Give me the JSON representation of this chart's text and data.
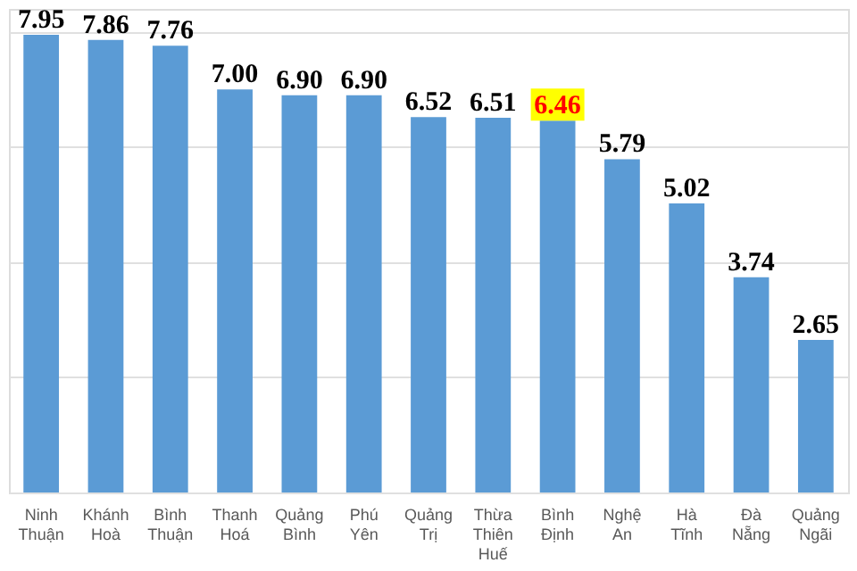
{
  "chart_data": {
    "type": "bar",
    "categories": [
      "Ninh Thuận",
      "Khánh Hoà",
      "Bình Thuận",
      "Thanh Hoá",
      "Quảng Bình",
      "Phú Yên",
      "Quảng Trị",
      "Thừa Thiên Huế",
      "Bình Định",
      "Nghệ An",
      "Hà Tĩnh",
      "Đà Nẵng",
      "Quảng Ngãi"
    ],
    "values": [
      7.95,
      7.86,
      7.76,
      7.0,
      6.9,
      6.9,
      6.52,
      6.51,
      6.46,
      5.79,
      5.02,
      3.74,
      2.65
    ],
    "color": "#5b9bd5",
    "value_labels": [
      "7.95",
      "7.86",
      "7.76",
      "7.00",
      "6.90",
      "6.90",
      "6.52",
      "6.51",
      null,
      "5.79",
      "5.02",
      "3.74",
      "2.65"
    ],
    "annotations": [
      {
        "text": "6.46",
        "x": "Bình Định",
        "y": 6.46
      }
    ],
    "ylim": [
      0,
      8.4
    ],
    "yticks": [
      {
        "value": 0,
        "label": null
      },
      {
        "value": 2,
        "label": null
      },
      {
        "value": 4,
        "label": null
      },
      {
        "value": 6,
        "label": null
      },
      {
        "value": 8,
        "label": null
      }
    ],
    "grid": "y"
  }
}
